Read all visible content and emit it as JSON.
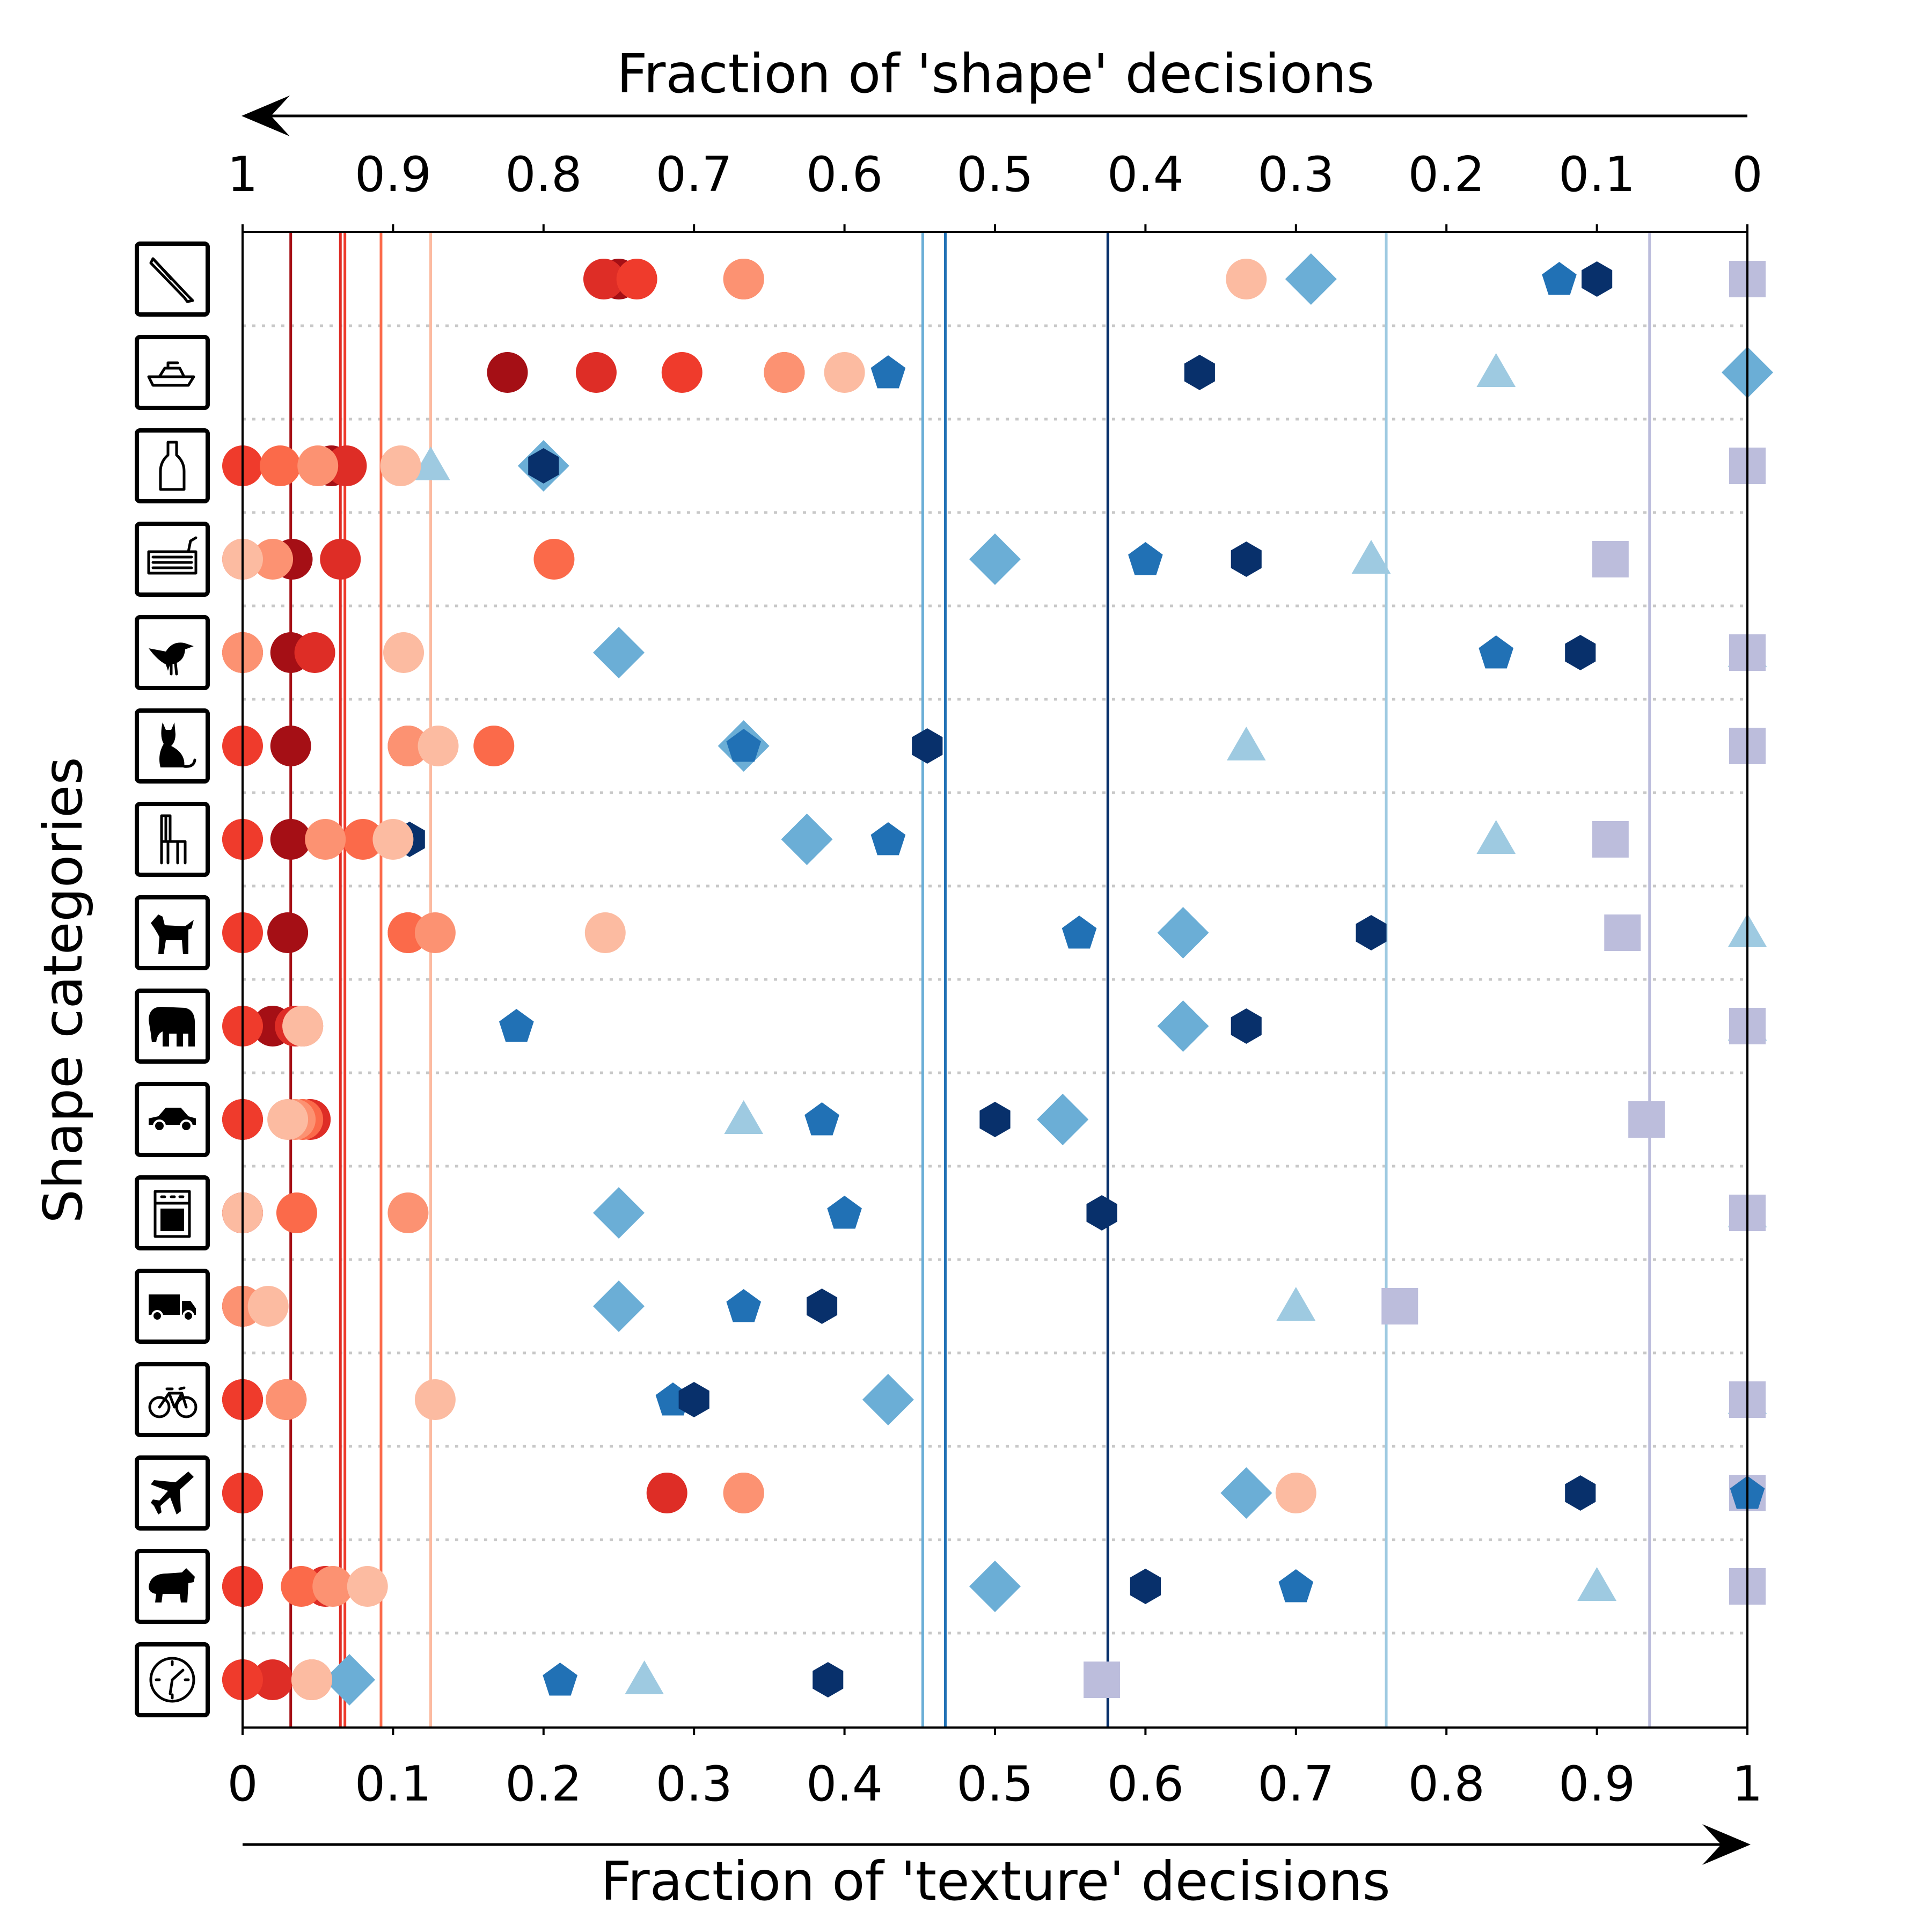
{
  "chart_data": {
    "type": "scatter",
    "title": "",
    "xlabel": "Fraction of 'texture' decisions",
    "top_xlabel": "Fraction of 'shape' decisions",
    "ylabel": "Shape categories",
    "xlim": [
      0,
      1
    ],
    "x_ticks": [
      "0",
      "0.1",
      "0.2",
      "0.3",
      "0.4",
      "0.5",
      "0.6",
      "0.7",
      "0.8",
      "0.9",
      "1"
    ],
    "top_x_ticks": [
      "1",
      "0.9",
      "0.8",
      "0.7",
      "0.6",
      "0.5",
      "0.4",
      "0.3",
      "0.2",
      "0.1",
      "0"
    ],
    "categories": [
      "knife",
      "boat",
      "bottle",
      "keyboard",
      "bird",
      "cat",
      "chair",
      "dog",
      "elephant",
      "car",
      "oven",
      "truck",
      "bicycle",
      "airplane",
      "bear",
      "clock"
    ],
    "category_icons": [
      "knife-icon",
      "boat-icon",
      "bottle-icon",
      "keyboard-icon",
      "bird-icon",
      "cat-icon",
      "chair-icon",
      "dog-icon",
      "elephant-icon",
      "car-icon",
      "oven-icon",
      "truck-icon",
      "bicycle-icon",
      "airplane-icon",
      "bear-icon",
      "clock-icon"
    ],
    "series": [
      {
        "name": "model-diamond",
        "marker": "diamond",
        "color": "#6baed6",
        "values": [
          0.71,
          1.0,
          0.2,
          0.5,
          0.25,
          0.333,
          0.375,
          0.625,
          0.625,
          0.545,
          0.25,
          0.25,
          0.429,
          0.667,
          0.5,
          0.071
        ]
      },
      {
        "name": "model-triangle",
        "marker": "triangle",
        "color": "#9ecae1",
        "values": [
          null,
          0.833,
          0.125,
          0.75,
          1.0,
          0.667,
          0.833,
          1.0,
          1.0,
          0.333,
          1.0,
          0.7,
          1.0,
          null,
          0.9,
          0.267
        ]
      },
      {
        "name": "model-square",
        "marker": "square",
        "color": "#bcbddc",
        "values": [
          1.0,
          null,
          1.0,
          0.909,
          1.0,
          1.0,
          0.909,
          0.917,
          1.0,
          0.933,
          1.0,
          0.769,
          1.0,
          1.0,
          1.0,
          0.571
        ]
      },
      {
        "name": "model-pentagon",
        "marker": "pentagon",
        "color": "#2171b5",
        "values": [
          0.875,
          0.429,
          0.0,
          0.6,
          0.833,
          0.333,
          0.429,
          0.556,
          0.182,
          0.385,
          0.4,
          0.333,
          0.286,
          1.0,
          0.7,
          0.211
        ]
      },
      {
        "name": "model-hexagon",
        "marker": "hexagon",
        "color": "#08306b",
        "values": [
          0.9,
          0.636,
          0.2,
          0.667,
          0.889,
          0.455,
          0.111,
          0.75,
          0.667,
          0.5,
          0.571,
          0.385,
          0.3,
          0.889,
          0.6,
          0.389
        ]
      },
      {
        "name": "human-1",
        "marker": "circle",
        "color": "#a50f15",
        "values": [
          0.25,
          0.176,
          0.059,
          0.033,
          0.032,
          0.032,
          0.032,
          0.03,
          0.02,
          0.0,
          0.0,
          0.0,
          0.0,
          0.0,
          0.0,
          0.0
        ]
      },
      {
        "name": "human-2",
        "marker": "circle",
        "color": "#de2d26",
        "values": [
          0.24,
          0.235,
          0.069,
          0.065,
          0.048,
          0.11,
          0.0,
          0.11,
          0.035,
          0.045,
          0.0,
          0.0,
          0.0,
          0.282,
          0.055,
          0.02
        ]
      },
      {
        "name": "human-3",
        "marker": "circle",
        "color": "#ef3b2c",
        "values": [
          0.262,
          0.292,
          0.0,
          0.0,
          0.0,
          0.0,
          0.0,
          0.0,
          0.0,
          0.0,
          0.0,
          0.0,
          0.0,
          0.0,
          0.0,
          0.0
        ]
      },
      {
        "name": "human-4",
        "marker": "circle",
        "color": "#fb6a4a",
        "values": [
          0.333,
          0.36,
          0.025,
          0.207,
          0.0,
          0.167,
          0.08,
          0.11,
          0.04,
          0.04,
          0.036,
          0.0,
          0.029,
          0.333,
          0.039,
          0.046
        ]
      },
      {
        "name": "human-5",
        "marker": "circle",
        "color": "#fc9272",
        "values": [
          0.333,
          0.36,
          0.05,
          0.02,
          0.0,
          0.11,
          0.055,
          0.128,
          0.04,
          0.035,
          0.11,
          0.0,
          0.029,
          0.333,
          0.06,
          0.046
        ]
      },
      {
        "name": "human-6",
        "marker": "circle",
        "color": "#fcbba1",
        "values": [
          0.667,
          0.4,
          0.105,
          0.0,
          0.107,
          0.13,
          0.1,
          0.241,
          0.04,
          0.03,
          0.0,
          0.017,
          0.128,
          0.7,
          0.083,
          0.046
        ]
      }
    ],
    "human_mean_lines": [
      {
        "value": 0.032,
        "color": "#a50f15"
      },
      {
        "value": 0.065,
        "color": "#de2d26"
      },
      {
        "value": 0.068,
        "color": "#ef3b2c"
      },
      {
        "value": 0.092,
        "color": "#fb6a4a"
      },
      {
        "value": 0.125,
        "color": "#fcbba1"
      }
    ],
    "model_mean_lines": [
      {
        "value": 0.452,
        "color": "#6baed6"
      },
      {
        "value": 0.467,
        "color": "#2171b5"
      },
      {
        "value": 0.575,
        "color": "#08306b"
      },
      {
        "value": 0.76,
        "color": "#9ecae1"
      },
      {
        "value": 0.935,
        "color": "#bcbddc"
      }
    ]
  }
}
